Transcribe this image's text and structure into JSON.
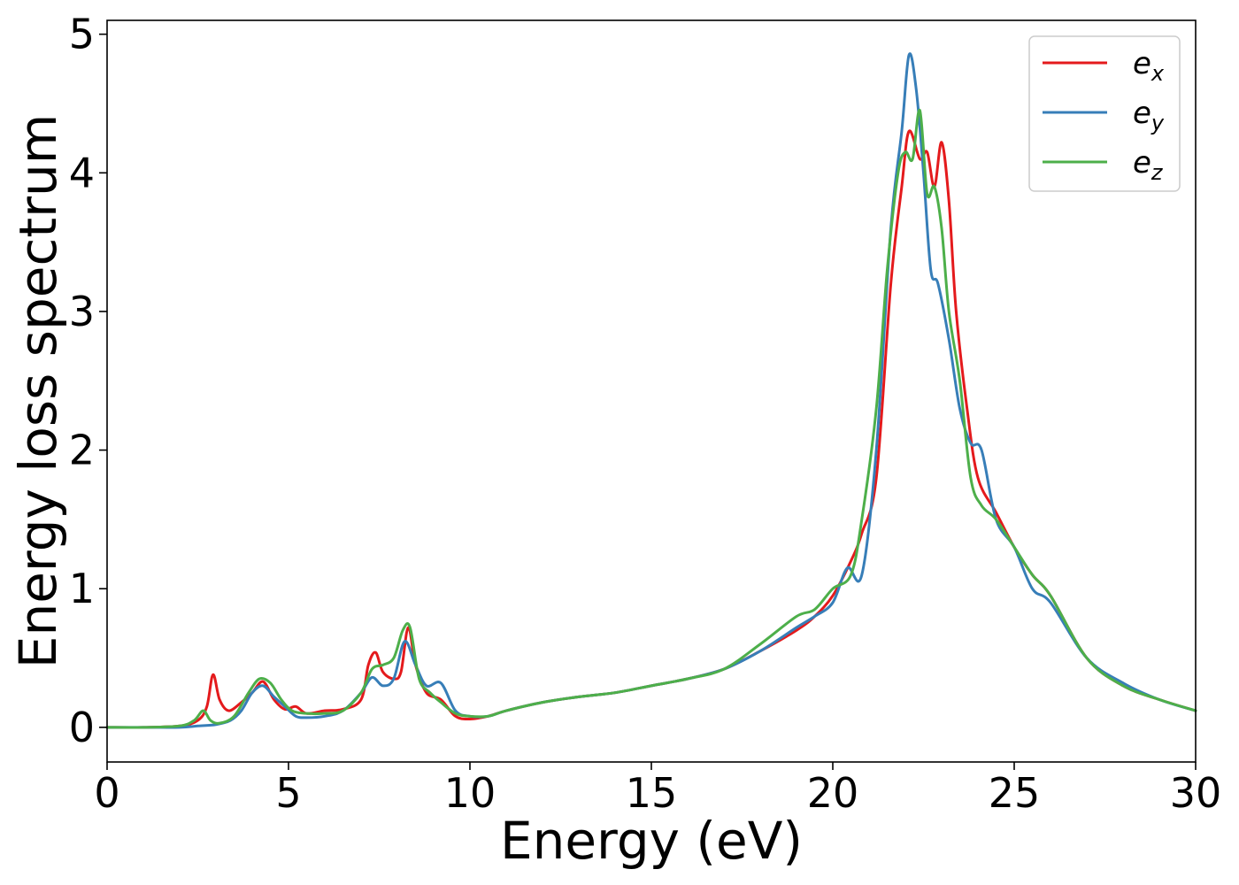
{
  "chart_data": {
    "type": "line",
    "title": "",
    "xlabel": "Energy (eV)",
    "ylabel": "Energy loss spectrum",
    "xlim": [
      0,
      30
    ],
    "ylim": [
      -0.25,
      5.1
    ],
    "xticks": [
      0,
      5,
      10,
      15,
      20,
      25,
      30
    ],
    "yticks": [
      0,
      1,
      2,
      3,
      4,
      5
    ],
    "grid": false,
    "legend_position": "top-right",
    "series": [
      {
        "name": "e_x",
        "label_base": "e",
        "label_sub": "x",
        "color": "#e41a1c",
        "x": [
          0,
          1,
          2,
          2.5,
          2.75,
          2.92,
          3.1,
          3.35,
          3.7,
          4.0,
          4.3,
          4.6,
          4.9,
          5.2,
          5.5,
          6.0,
          6.5,
          7.0,
          7.2,
          7.4,
          7.6,
          7.9,
          8.1,
          8.3,
          8.5,
          8.8,
          9.2,
          9.6,
          10.0,
          10.5,
          11,
          12,
          13,
          14,
          15,
          16,
          17,
          18,
          19,
          19.5,
          20,
          20.5,
          20.8,
          21.2,
          21.6,
          21.9,
          22.1,
          22.4,
          22.6,
          22.8,
          23.0,
          23.2,
          23.4,
          23.7,
          24.0,
          24.5,
          25.0,
          25.5,
          26,
          27,
          28,
          29,
          30
        ],
        "y": [
          0,
          0,
          0.01,
          0.05,
          0.15,
          0.38,
          0.2,
          0.12,
          0.18,
          0.25,
          0.33,
          0.2,
          0.13,
          0.15,
          0.1,
          0.12,
          0.13,
          0.2,
          0.45,
          0.54,
          0.4,
          0.35,
          0.4,
          0.72,
          0.45,
          0.25,
          0.2,
          0.08,
          0.06,
          0.08,
          0.12,
          0.18,
          0.22,
          0.25,
          0.3,
          0.35,
          0.42,
          0.55,
          0.7,
          0.8,
          0.95,
          1.2,
          1.4,
          1.8,
          3.2,
          3.9,
          4.3,
          4.1,
          4.15,
          3.9,
          4.22,
          3.8,
          3.0,
          2.3,
          1.8,
          1.55,
          1.3,
          1.1,
          0.95,
          0.5,
          0.3,
          0.2,
          0.12
        ]
      },
      {
        "name": "e_y",
        "label_base": "e",
        "label_sub": "y",
        "color": "#377eb8",
        "x": [
          0,
          1,
          2,
          2.5,
          3.0,
          3.4,
          3.7,
          4.0,
          4.3,
          4.6,
          4.9,
          5.2,
          5.5,
          6.0,
          6.5,
          7.0,
          7.3,
          7.6,
          7.9,
          8.2,
          8.5,
          8.8,
          9.2,
          9.6,
          10.0,
          10.5,
          11,
          12,
          13,
          14,
          15,
          16,
          17,
          18,
          19,
          19.5,
          20,
          20.4,
          20.8,
          21.2,
          21.6,
          21.9,
          22.1,
          22.3,
          22.5,
          22.7,
          22.9,
          23.2,
          23.5,
          23.8,
          24.1,
          24.5,
          25,
          25.5,
          26,
          27,
          28,
          29,
          30
        ],
        "y": [
          0,
          0,
          0,
          0.01,
          0.02,
          0.05,
          0.12,
          0.25,
          0.3,
          0.22,
          0.15,
          0.08,
          0.07,
          0.08,
          0.12,
          0.25,
          0.36,
          0.3,
          0.35,
          0.62,
          0.45,
          0.3,
          0.32,
          0.12,
          0.08,
          0.08,
          0.12,
          0.18,
          0.22,
          0.25,
          0.3,
          0.35,
          0.42,
          0.55,
          0.72,
          0.8,
          0.9,
          1.15,
          1.1,
          2.0,
          3.6,
          4.3,
          4.85,
          4.6,
          4.0,
          3.3,
          3.2,
          2.8,
          2.3,
          2.05,
          2.0,
          1.5,
          1.3,
          1.0,
          0.9,
          0.5,
          0.32,
          0.2,
          0.12
        ]
      },
      {
        "name": "e_z",
        "label_base": "e",
        "label_sub": "z",
        "color": "#4daf4a",
        "x": [
          0,
          1,
          2,
          2.4,
          2.65,
          2.85,
          3.1,
          3.5,
          3.9,
          4.2,
          4.5,
          4.8,
          5.1,
          5.5,
          6.0,
          6.5,
          7.0,
          7.3,
          7.6,
          7.9,
          8.15,
          8.35,
          8.6,
          8.9,
          9.2,
          9.6,
          10.0,
          10.5,
          11,
          12,
          13,
          14,
          15,
          16,
          17,
          18,
          19,
          19.5,
          20,
          20.5,
          20.8,
          21.2,
          21.5,
          21.8,
          22.0,
          22.2,
          22.4,
          22.6,
          22.8,
          23.0,
          23.2,
          23.5,
          23.8,
          24.1,
          24.5,
          25,
          25.5,
          26,
          27,
          28,
          29,
          30
        ],
        "y": [
          0,
          0,
          0.01,
          0.05,
          0.12,
          0.05,
          0.03,
          0.08,
          0.25,
          0.35,
          0.32,
          0.2,
          0.12,
          0.1,
          0.1,
          0.12,
          0.25,
          0.42,
          0.45,
          0.5,
          0.7,
          0.72,
          0.35,
          0.25,
          0.18,
          0.1,
          0.08,
          0.08,
          0.12,
          0.18,
          0.22,
          0.25,
          0.3,
          0.35,
          0.42,
          0.6,
          0.8,
          0.85,
          1.0,
          1.1,
          1.5,
          2.3,
          3.3,
          4.0,
          4.15,
          4.1,
          4.45,
          3.85,
          3.9,
          3.6,
          3.0,
          2.5,
          1.8,
          1.6,
          1.5,
          1.3,
          1.1,
          0.95,
          0.5,
          0.3,
          0.2,
          0.12
        ]
      }
    ]
  }
}
